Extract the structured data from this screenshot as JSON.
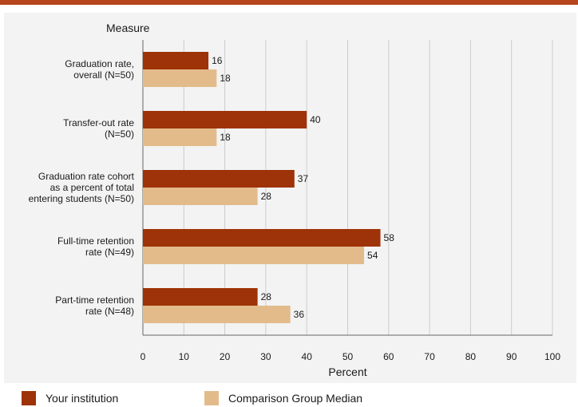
{
  "colors": {
    "header_bar": "#b5451b",
    "panel_bg": "#f3f3f3",
    "grid": "#cccccc",
    "your_institution": "#9e3208",
    "comparison_median": "#e3bb8b"
  },
  "chart_data": {
    "type": "bar",
    "orientation": "horizontal",
    "title": "",
    "ylabel": "Measure",
    "xlabel": "Percent",
    "xlim": [
      0,
      100
    ],
    "xticks": [
      0,
      10,
      20,
      30,
      40,
      50,
      60,
      70,
      80,
      90,
      100
    ],
    "grid": "vertical",
    "legend_position": "bottom",
    "categories": [
      [
        "Graduation rate,",
        "overall (N=50)"
      ],
      [
        "Transfer-out rate",
        "(N=50)"
      ],
      [
        "Graduation rate cohort",
        "as a percent of total",
        "entering students (N=50)"
      ],
      [
        "Full-time retention",
        "rate (N=49)"
      ],
      [
        "Part-time retention",
        "rate (N=48)"
      ]
    ],
    "series": [
      {
        "name": "Your institution",
        "values": [
          16,
          40,
          37,
          58,
          28
        ]
      },
      {
        "name": "Comparison Group Median",
        "values": [
          18,
          18,
          28,
          54,
          36
        ]
      }
    ]
  },
  "legend": {
    "items": [
      "Your institution",
      "Comparison Group Median"
    ]
  }
}
